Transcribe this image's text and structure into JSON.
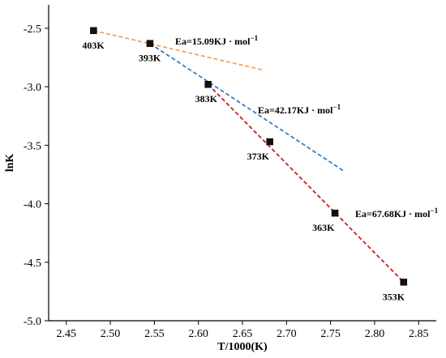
{
  "chart_data": {
    "type": "scatter",
    "xlabel": "T/1000(K)",
    "ylabel": "lnK",
    "xlim": [
      2.43,
      2.87
    ],
    "ylim": [
      -5.0,
      -2.3
    ],
    "x_ticks": [
      "2.45",
      "2.50",
      "2.55",
      "2.60",
      "2.65",
      "2.70",
      "2.75",
      "2.80",
      "2.85"
    ],
    "y_ticks": [
      "-2.5",
      "-3.0",
      "-3.5",
      "-4.0",
      "-4.5",
      "-5.0"
    ],
    "grid": false,
    "points": [
      {
        "label": "403K",
        "x": 2.481,
        "y": -2.52
      },
      {
        "label": "393K",
        "x": 2.545,
        "y": -2.63
      },
      {
        "label": "383K",
        "x": 2.611,
        "y": -2.98
      },
      {
        "label": "373K",
        "x": 2.681,
        "y": -3.47
      },
      {
        "label": "363K",
        "x": 2.755,
        "y": -4.08
      },
      {
        "label": "353K",
        "x": 2.833,
        "y": -4.67
      }
    ],
    "fit_lines": [
      {
        "color": "#f4a460",
        "annotation": "Ea=15.09KJ · mol",
        "superscript": "−1",
        "x": [
          2.481,
          2.675
        ],
        "y": [
          -2.52,
          -2.86
        ]
      },
      {
        "color": "#3a7ebf",
        "annotation": "Ea=42.17KJ · mol",
        "superscript": "−1",
        "x": [
          2.545,
          2.765
        ],
        "y": [
          -2.63,
          -3.72
        ]
      },
      {
        "color": "#cc1f1a",
        "annotation": "Ea=67.68KJ · mol",
        "superscript": "−1",
        "x": [
          2.611,
          2.833
        ],
        "y": [
          -2.98,
          -4.67
        ]
      }
    ]
  }
}
